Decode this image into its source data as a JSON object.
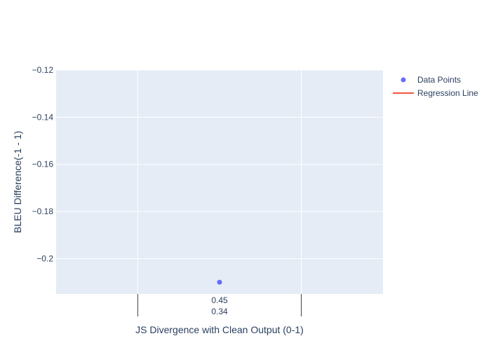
{
  "chart_data": {
    "type": "scatter",
    "xlabel": "JS Divergence with Clean Output (0-1)",
    "ylabel": "BLEU Difference(-1 - 1)",
    "ylim": [
      -0.215,
      -0.12
    ],
    "yticks": [
      -0.12,
      -0.14,
      -0.16,
      -0.18,
      -0.2
    ],
    "ytick_labels": [
      "−0.12",
      "−0.14",
      "−0.16",
      "−0.18",
      "−0.2"
    ],
    "x_categories": [
      {
        "label": "0.45"
      },
      {
        "label": "0.34"
      }
    ],
    "series": [
      {
        "name": "Data Points",
        "kind": "markers",
        "points": [
          {
            "x": "0.45 / 0.34",
            "y": -0.21
          }
        ]
      },
      {
        "name": "Regression Line",
        "kind": "line",
        "points": []
      }
    ],
    "grid": true,
    "legend_position": "top-right",
    "colors": {
      "plot_bg": "#e5ecf6",
      "grid": "#ffffff",
      "points": "#636efa",
      "regression": "#ef553b",
      "text": "#2a3f5f"
    }
  }
}
